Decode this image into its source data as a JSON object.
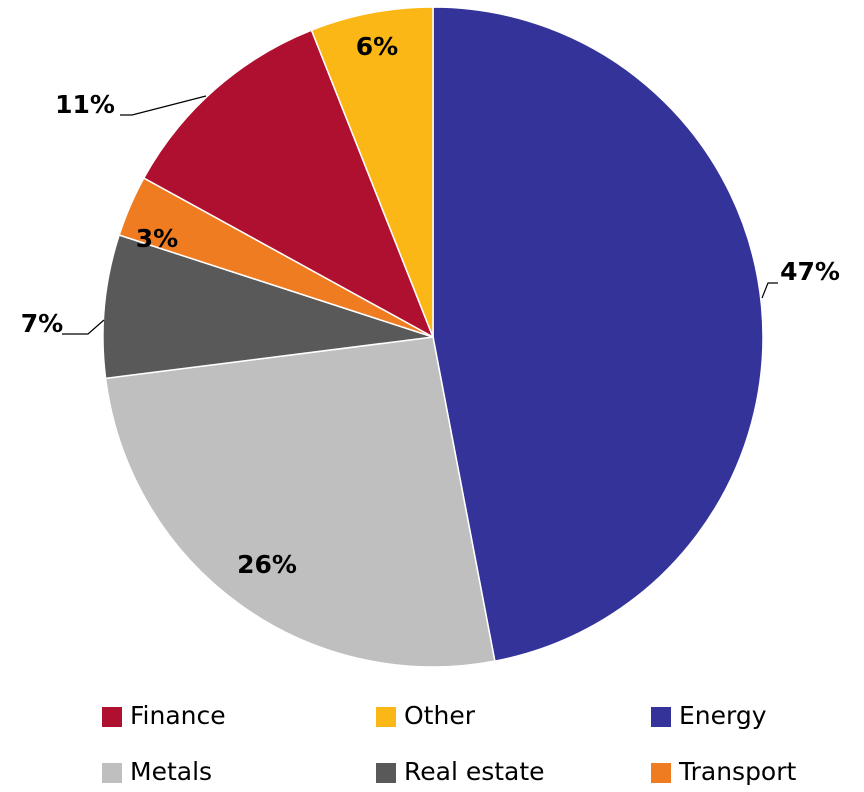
{
  "chart_data": {
    "type": "pie",
    "categories": [
      "Energy",
      "Metals",
      "Real estate",
      "Transport",
      "Finance",
      "Other"
    ],
    "values": [
      47,
      26,
      7,
      3,
      11,
      6
    ],
    "value_labels": [
      "47%",
      "26%",
      "7%",
      "3%",
      "11%",
      "6%"
    ],
    "colors": [
      "#333399",
      "#bfbfbf",
      "#595959",
      "#f07c22",
      "#b01030",
      "#fbb715"
    ],
    "legend": "bottom"
  }
}
